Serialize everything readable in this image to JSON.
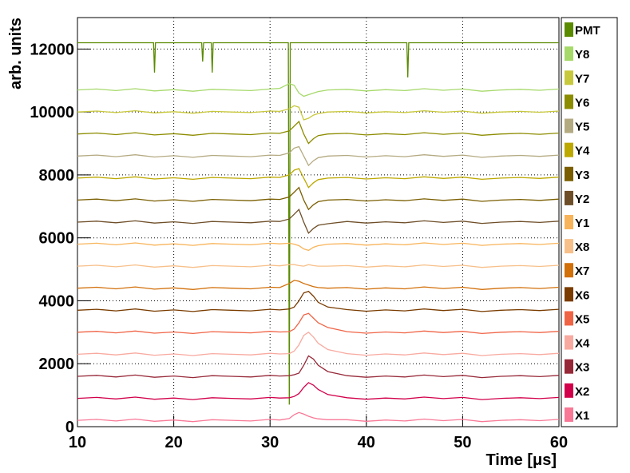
{
  "chart_data": {
    "type": "line",
    "x_label": "Time [μs]",
    "y_label": "arb. units",
    "xlim": [
      10,
      60
    ],
    "xticks": [
      10,
      20,
      30,
      40,
      50,
      60
    ],
    "ylim": [
      0,
      13000
    ],
    "yticks": [
      0,
      2000,
      4000,
      6000,
      8000,
      10000,
      12000
    ],
    "grid": true,
    "legend": "right",
    "x": [
      10,
      12,
      14,
      16,
      18,
      20,
      22,
      24,
      26,
      28,
      30,
      31,
      32,
      32.5,
      33,
      33.5,
      34,
      34.5,
      35,
      36,
      38,
      40,
      42,
      44,
      46,
      48,
      50,
      52,
      54,
      56,
      58,
      60
    ],
    "series": [
      {
        "name": "PMT",
        "color": "#5a8a00",
        "x": [
          10,
          17.9,
          18,
          18.1,
          22.9,
          23,
          23.1,
          23.9,
          24,
          24.1,
          31.9,
          32,
          32.1,
          44.2,
          44.3,
          44.4,
          60
        ],
        "values": [
          12200,
          12200,
          11250,
          12200,
          12200,
          11600,
          12200,
          12200,
          11250,
          12200,
          12200,
          700,
          12200,
          12200,
          11100,
          12200,
          12200
        ]
      },
      {
        "name": "Y8",
        "color": "#a6d96a",
        "values": [
          10700,
          10730,
          10680,
          10740,
          10670,
          10710,
          10660,
          10720,
          10700,
          10680,
          10730,
          10750,
          10900,
          10850,
          10600,
          10500,
          10550,
          10600,
          10650,
          10700,
          10720,
          10670,
          10710,
          10680,
          10740,
          10690,
          10730,
          10660,
          10700,
          10720,
          10690,
          10730
        ]
      },
      {
        "name": "Y7",
        "color": "#c8c83c",
        "values": [
          10000,
          10030,
          9980,
          10040,
          9970,
          10010,
          9960,
          10020,
          10000,
          9980,
          10030,
          10020,
          10100,
          10200,
          10150,
          9750,
          9800,
          9900,
          9950,
          10000,
          10020,
          9970,
          10010,
          9980,
          10040,
          9990,
          10030,
          9960,
          10000,
          10020,
          9990,
          10030
        ]
      },
      {
        "name": "Y6",
        "color": "#8c8c00",
        "values": [
          9300,
          9330,
          9280,
          9340,
          9270,
          9310,
          9260,
          9320,
          9300,
          9280,
          9330,
          9320,
          9400,
          9550,
          9700,
          9300,
          9000,
          9150,
          9250,
          9300,
          9320,
          9270,
          9310,
          9280,
          9340,
          9290,
          9330,
          9260,
          9300,
          9320,
          9290,
          9330
        ]
      },
      {
        "name": "Y5",
        "color": "#b4aa82",
        "values": [
          8600,
          8630,
          8580,
          8640,
          8570,
          8610,
          8560,
          8620,
          8600,
          8580,
          8630,
          8620,
          8700,
          8850,
          8900,
          8600,
          8300,
          8450,
          8550,
          8600,
          8620,
          8570,
          8610,
          8580,
          8640,
          8590,
          8630,
          8560,
          8600,
          8620,
          8590,
          8630
        ]
      },
      {
        "name": "Y4",
        "color": "#bca800",
        "values": [
          7900,
          7930,
          7880,
          7940,
          7870,
          7910,
          7860,
          7920,
          7900,
          7880,
          7930,
          7920,
          8000,
          8150,
          8200,
          7900,
          7600,
          7750,
          7850,
          7900,
          7920,
          7870,
          7910,
          7880,
          7940,
          7890,
          7930,
          7860,
          7900,
          7920,
          7890,
          7930
        ]
      },
      {
        "name": "Y3",
        "color": "#7a5e00",
        "values": [
          7200,
          7230,
          7180,
          7240,
          7170,
          7210,
          7160,
          7220,
          7200,
          7180,
          7230,
          7220,
          7300,
          7450,
          7600,
          7200,
          6900,
          7050,
          7150,
          7200,
          7220,
          7170,
          7210,
          7180,
          7240,
          7190,
          7230,
          7160,
          7200,
          7220,
          7190,
          7230
        ]
      },
      {
        "name": "Y2",
        "color": "#6e4e28",
        "values": [
          6500,
          6530,
          6480,
          6540,
          6470,
          6510,
          6460,
          6520,
          6500,
          6480,
          6530,
          6520,
          6600,
          6750,
          6900,
          6500,
          6150,
          6300,
          6400,
          6450,
          6520,
          6470,
          6510,
          6480,
          6540,
          6490,
          6530,
          6460,
          6500,
          6520,
          6490,
          6530
        ]
      },
      {
        "name": "Y1",
        "color": "#f8b45a",
        "values": [
          5800,
          5830,
          5780,
          5840,
          5770,
          5810,
          5760,
          5820,
          5800,
          5780,
          5830,
          5810,
          5830,
          5800,
          5750,
          5650,
          5600,
          5700,
          5750,
          5800,
          5820,
          5770,
          5810,
          5780,
          5840,
          5790,
          5830,
          5760,
          5800,
          5820,
          5790,
          5830
        ]
      },
      {
        "name": "X8",
        "color": "#f7c08a",
        "values": [
          5100,
          5130,
          5080,
          5140,
          5070,
          5110,
          5060,
          5120,
          5100,
          5080,
          5130,
          5110,
          5150,
          5150,
          5120,
          5100,
          5150,
          5120,
          5100,
          5100,
          5120,
          5070,
          5110,
          5080,
          5140,
          5090,
          5130,
          5060,
          5100,
          5120,
          5090,
          5130
        ]
      },
      {
        "name": "X7",
        "color": "#d2700a",
        "values": [
          4400,
          4430,
          4380,
          4440,
          4370,
          4410,
          4360,
          4420,
          4400,
          4380,
          4430,
          4420,
          4550,
          4650,
          4620,
          4550,
          4500,
          4450,
          4420,
          4400,
          4420,
          4370,
          4410,
          4380,
          4440,
          4390,
          4430,
          4360,
          4400,
          4420,
          4390,
          4430
        ]
      },
      {
        "name": "X6",
        "color": "#7a3c00",
        "values": [
          3700,
          3730,
          3680,
          3740,
          3670,
          3710,
          3660,
          3720,
          3700,
          3680,
          3730,
          3710,
          3740,
          3800,
          4000,
          4250,
          4300,
          4150,
          3950,
          3800,
          3720,
          3670,
          3710,
          3680,
          3740,
          3690,
          3730,
          3660,
          3700,
          3720,
          3690,
          3730
        ]
      },
      {
        "name": "X5",
        "color": "#f06446",
        "values": [
          3000,
          3030,
          2980,
          3040,
          2970,
          3010,
          2960,
          3020,
          3000,
          2980,
          3030,
          3010,
          3020,
          3100,
          3300,
          3550,
          3600,
          3450,
          3300,
          3150,
          3020,
          2970,
          3010,
          2980,
          3040,
          2990,
          3030,
          2960,
          3000,
          3020,
          2990,
          3030
        ]
      },
      {
        "name": "X4",
        "color": "#f8aaa0",
        "values": [
          2300,
          2330,
          2280,
          2340,
          2270,
          2310,
          2260,
          2320,
          2300,
          2280,
          2330,
          2310,
          2320,
          2400,
          2600,
          2900,
          3000,
          2850,
          2650,
          2450,
          2320,
          2270,
          2310,
          2280,
          2340,
          2290,
          2330,
          2260,
          2300,
          2320,
          2290,
          2330
        ]
      },
      {
        "name": "X3",
        "color": "#962838",
        "values": [
          1600,
          1630,
          1580,
          1640,
          1570,
          1610,
          1560,
          1620,
          1600,
          1580,
          1630,
          1610,
          1620,
          1650,
          1700,
          1950,
          2250,
          2150,
          1950,
          1750,
          1620,
          1570,
          1610,
          1580,
          1640,
          1590,
          1630,
          1560,
          1600,
          1620,
          1590,
          1630
        ]
      },
      {
        "name": "X2",
        "color": "#d2004a",
        "values": [
          900,
          930,
          880,
          940,
          870,
          910,
          860,
          920,
          900,
          880,
          930,
          910,
          920,
          960,
          1050,
          1250,
          1400,
          1320,
          1180,
          1020,
          920,
          870,
          910,
          880,
          940,
          890,
          930,
          860,
          900,
          920,
          890,
          930
        ]
      },
      {
        "name": "X1",
        "color": "#f87896",
        "values": [
          200,
          230,
          180,
          240,
          170,
          210,
          160,
          220,
          200,
          180,
          230,
          210,
          260,
          380,
          450,
          400,
          330,
          280,
          250,
          220,
          220,
          170,
          210,
          180,
          240,
          190,
          230,
          160,
          200,
          220,
          190,
          230
        ]
      }
    ]
  }
}
